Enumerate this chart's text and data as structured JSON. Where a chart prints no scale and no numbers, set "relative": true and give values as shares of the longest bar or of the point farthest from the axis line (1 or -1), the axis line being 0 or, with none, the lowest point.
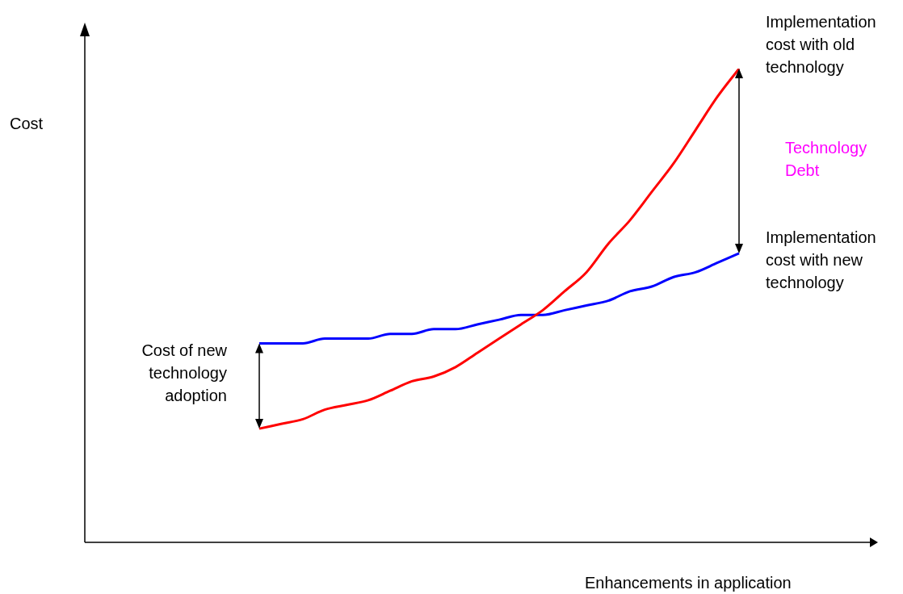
{
  "chart_data": {
    "type": "line",
    "relative": true,
    "xlabel": "Enhancements in application",
    "ylabel": "Cost",
    "categories": [
      null,
      null,
      null,
      null,
      null,
      null,
      null,
      null,
      null,
      null,
      null,
      null,
      null,
      null,
      null,
      null,
      null,
      null,
      null,
      null,
      null,
      null,
      null,
      null,
      null,
      null,
      null,
      null,
      null,
      null,
      null,
      null,
      null,
      null,
      null,
      null,
      null
    ],
    "series": [
      {
        "name": "Implementation cost with old technology",
        "color": "#ff0000",
        "values": [
          null,
          null,
          null,
          null,
          null,
          null,
          null,
          null,
          0.24,
          0.25,
          0.26,
          0.28,
          0.29,
          0.3,
          0.32,
          0.34,
          0.35,
          0.37,
          0.4,
          0.43,
          0.46,
          0.49,
          0.53,
          0.57,
          0.63,
          0.68,
          0.74,
          0.8,
          0.87,
          0.94,
          1,
          null,
          null,
          null,
          null,
          null,
          null
        ]
      },
      {
        "name": "Implementation cost with new technology",
        "color": "#0000ff",
        "values": [
          null,
          null,
          null,
          null,
          null,
          null,
          null,
          null,
          0.42,
          0.42,
          0.42,
          0.43,
          0.43,
          0.43,
          0.44,
          0.44,
          0.45,
          0.45,
          0.46,
          0.47,
          0.48,
          0.48,
          0.49,
          0.5,
          0.51,
          0.53,
          0.54,
          0.56,
          0.57,
          0.59,
          0.61,
          null,
          null,
          null,
          null,
          null,
          null
        ]
      }
    ],
    "annotations": [
      "Cost of new technology adoption",
      "Technology Debt"
    ],
    "legend": false,
    "marker": "none",
    "line_style": "solid",
    "tick_labels": false
  }
}
